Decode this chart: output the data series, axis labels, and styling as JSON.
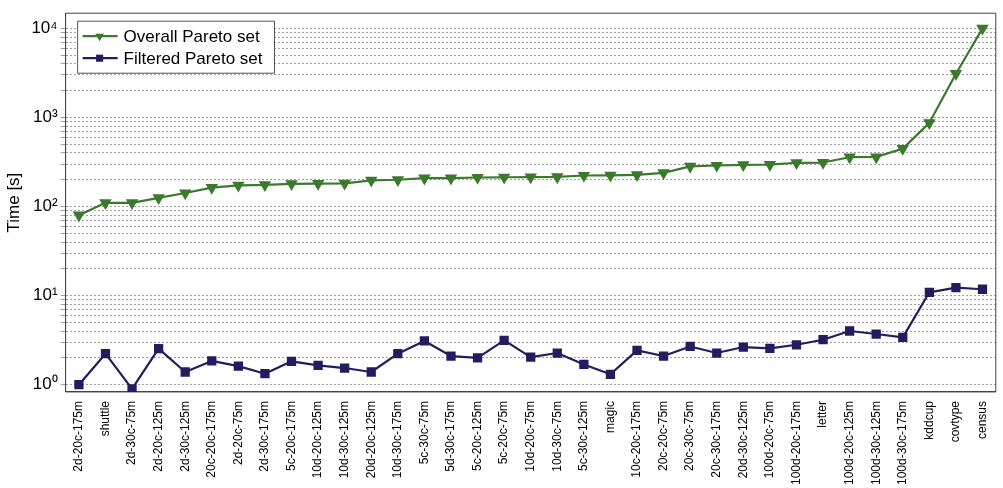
{
  "chart_data": {
    "type": "line",
    "ylabel": "Time [s]",
    "categories": [
      "2d-20c-175m",
      "shuttle",
      "2d-30c-75m",
      "2d-20c-125m",
      "2d-30c-125m",
      "20c-20c-175m",
      "2d-20c-75m",
      "2d-30c-175m",
      "5c-20c-175m",
      "10d-20c-125m",
      "10d-30c-125m",
      "20d-20c-125m",
      "10d-30c-175m",
      "5c-30c-75m",
      "5d-30c-175m",
      "5c-20c-125m",
      "5c-20c-75m",
      "10d-20c-75m",
      "10d-30c-75m",
      "5c-30c-125m",
      "magic",
      "10c-20c-175m",
      "20c-20c-75m",
      "20c-30c-75m",
      "20c-30c-175m",
      "20d-30c-125m",
      "100d-20c-75m",
      "100d-20c-175m",
      "letter",
      "100d-20c-125m",
      "100d-30c-125m",
      "100d-30c-175m",
      "kddcup",
      "covtype",
      "census"
    ],
    "series": [
      {
        "name": "Overall Pareto set",
        "color": "#3b7a2c",
        "marker": "triangle",
        "values": [
          80,
          110,
          110,
          125,
          142,
          163,
          173,
          175,
          180,
          181,
          182,
          197,
          200,
          208,
          208,
          212,
          213,
          214,
          215,
          223,
          224,
          227,
          239,
          282,
          289,
          294,
          295,
          310,
          312,
          358,
          360,
          447,
          870,
          3100,
          10000
        ]
      },
      {
        "name": "Filtered Pareto set",
        "color": "#221d5e",
        "marker": "square",
        "values": [
          1.0,
          2.23,
          0.9,
          2.54,
          1.39,
          1.85,
          1.62,
          1.33,
          1.83,
          1.65,
          1.54,
          1.39,
          2.23,
          3.1,
          2.1,
          2.0,
          3.15,
          2.04,
          2.27,
          1.69,
          1.31,
          2.43,
          2.1,
          2.69,
          2.27,
          2.65,
          2.56,
          2.81,
          3.2,
          4.01,
          3.71,
          3.4,
          10.9,
          12.3,
          11.8
        ]
      }
    ],
    "log": "y",
    "ylim": [
      0.83,
      14800
    ],
    "yticks": [
      {
        "value": 1,
        "label": "10⁰"
      },
      {
        "value": 2,
        "label": null
      },
      {
        "value": 3,
        "label": null
      },
      {
        "value": 4,
        "label": null
      },
      {
        "value": 5,
        "label": null
      },
      {
        "value": 6,
        "label": null
      },
      {
        "value": 7,
        "label": null
      },
      {
        "value": 8,
        "label": null
      },
      {
        "value": 9,
        "label": null
      },
      {
        "value": 10,
        "label": "10¹"
      },
      {
        "value": 20,
        "label": null
      },
      {
        "value": 30,
        "label": null
      },
      {
        "value": 40,
        "label": null
      },
      {
        "value": 50,
        "label": null
      },
      {
        "value": 60,
        "label": null
      },
      {
        "value": 70,
        "label": null
      },
      {
        "value": 80,
        "label": null
      },
      {
        "value": 90,
        "label": null
      },
      {
        "value": 100,
        "label": "10²"
      },
      {
        "value": 200,
        "label": null
      },
      {
        "value": 300,
        "label": null
      },
      {
        "value": 400,
        "label": null
      },
      {
        "value": 500,
        "label": null
      },
      {
        "value": 600,
        "label": null
      },
      {
        "value": 700,
        "label": null
      },
      {
        "value": 800,
        "label": null
      },
      {
        "value": 900,
        "label": null
      },
      {
        "value": 1000,
        "label": "10³"
      },
      {
        "value": 2000,
        "label": null
      },
      {
        "value": 3000,
        "label": null
      },
      {
        "value": 4000,
        "label": null
      },
      {
        "value": 5000,
        "label": null
      },
      {
        "value": 6000,
        "label": null
      },
      {
        "value": 7000,
        "label": null
      },
      {
        "value": 8000,
        "label": null
      },
      {
        "value": 9000,
        "label": null
      },
      {
        "value": 10000,
        "label": "10⁴"
      }
    ],
    "grid": "y",
    "legend": "top left",
    "line_style": "solid"
  }
}
